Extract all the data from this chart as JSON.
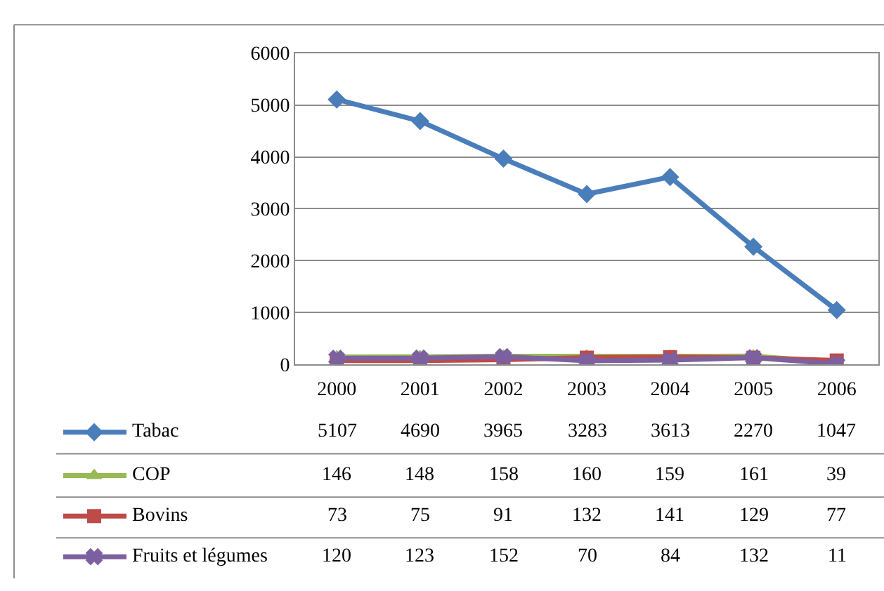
{
  "chart_data": {
    "type": "line",
    "categories": [
      "2000",
      "2001",
      "2002",
      "2003",
      "2004",
      "2005",
      "2006"
    ],
    "ylim": [
      0,
      6000
    ],
    "yticks": [
      0,
      1000,
      2000,
      3000,
      4000,
      5000,
      6000
    ],
    "grid": "y",
    "data_labels": true,
    "legend": "bottom left",
    "series": [
      {
        "name": "Tabac",
        "color": "#4a7ebb",
        "marker": "diamond",
        "values": [
          5107,
          4690,
          3965,
          3283,
          3613,
          2270,
          1047
        ]
      },
      {
        "name": "COP",
        "color": "#98b954",
        "marker": "triangle",
        "values": [
          146,
          148,
          158,
          160,
          159,
          161,
          39
        ]
      },
      {
        "name": "Bovins",
        "color": "#be4b48",
        "marker": "square",
        "values": [
          73,
          75,
          91,
          132,
          141,
          129,
          77
        ]
      },
      {
        "name": "Fruits et légumes",
        "color": "#7d60a0",
        "marker": "cross",
        "values": [
          120,
          123,
          152,
          70,
          84,
          132,
          11
        ]
      }
    ]
  }
}
